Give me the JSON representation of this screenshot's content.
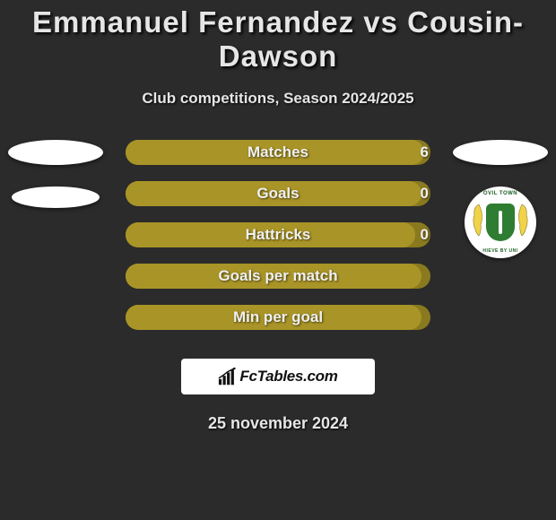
{
  "title": "Emmanuel Fernandez vs Cousin-Dawson",
  "subtitle": "Club competitions, Season 2024/2025",
  "date": "25 november 2024",
  "brand": "FcTables.com",
  "colors": {
    "bar_outer": "#8a7a1f",
    "bar_fill": "#a99427",
    "background": "#2b2b2b"
  },
  "left_team": {
    "logo_style": "double-ellipse"
  },
  "right_team": {
    "logo_style": "crest",
    "crest_top_text": "OVIL TOWN",
    "crest_bottom_text": "HIEVE BY UNI",
    "crest_green": "#2e7d32",
    "crest_yellow": "#f1d34a"
  },
  "stats": [
    {
      "label": "Matches",
      "right_value": "6",
      "fill_pct": 98,
      "show_value": true
    },
    {
      "label": "Goals",
      "right_value": "0",
      "fill_pct": 97,
      "show_value": true
    },
    {
      "label": "Hattricks",
      "right_value": "0",
      "fill_pct": 95,
      "show_value": true
    },
    {
      "label": "Goals per match",
      "right_value": "",
      "fill_pct": 97,
      "show_value": false
    },
    {
      "label": "Min per goal",
      "right_value": "",
      "fill_pct": 97,
      "show_value": false
    }
  ]
}
